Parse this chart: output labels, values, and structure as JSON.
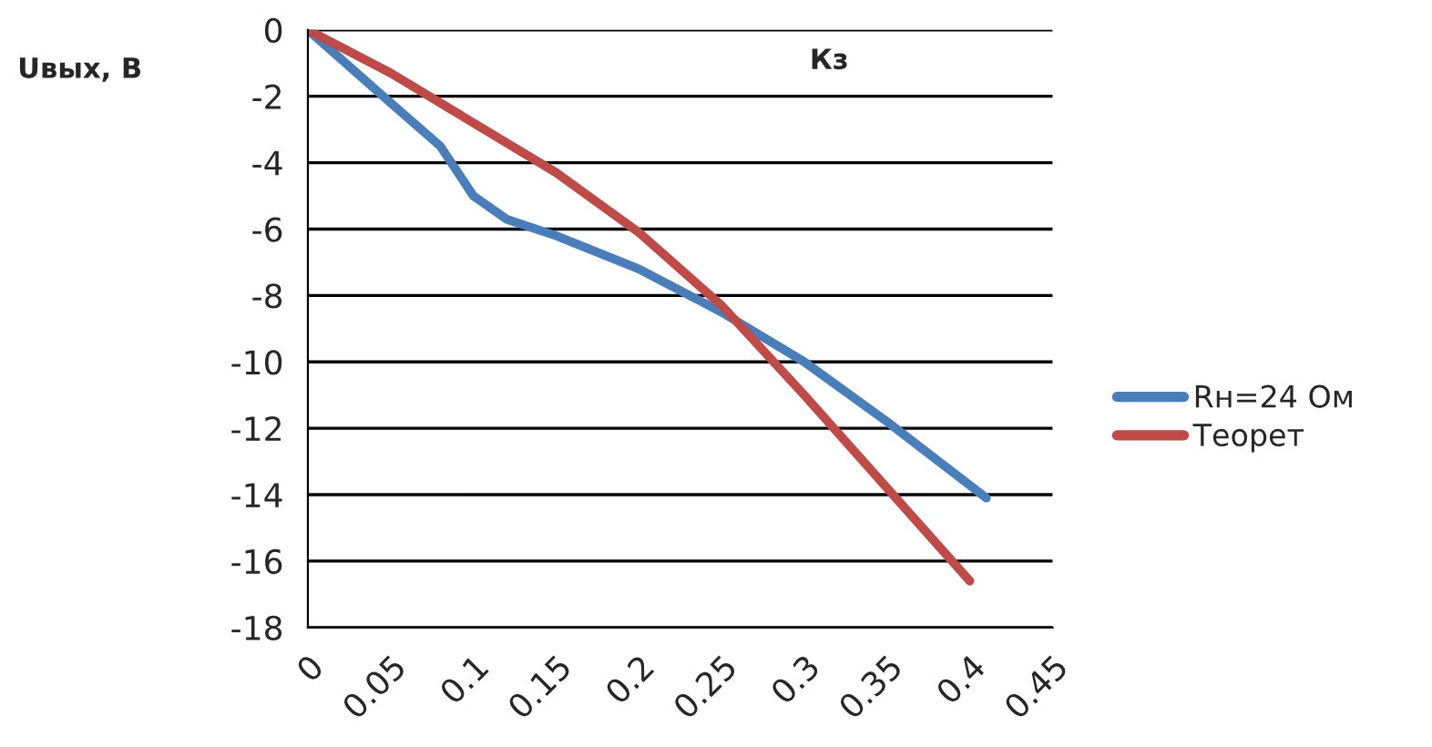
{
  "chart_data": {
    "type": "line",
    "xlabel": "Кз",
    "ylabel": "Uвых, В",
    "xlim": [
      0,
      0.45
    ],
    "xticks": [
      0,
      0.05,
      0.1,
      0.15,
      0.2,
      0.25,
      0.3,
      0.35,
      0.4,
      0.45
    ],
    "ylim": [
      -18,
      0
    ],
    "yticks": [
      -18,
      -16,
      -14,
      -12,
      -10,
      -8,
      -6,
      -4,
      -2,
      0
    ],
    "grid": "y",
    "legend": "right",
    "line_style": "solid",
    "marker": "none",
    "series": [
      {
        "name": "Rн=24 Ом",
        "color": "#4a7ebb",
        "x": [
          0,
          0.05,
          0.08,
          0.1,
          0.12,
          0.15,
          0.2,
          0.25,
          0.3,
          0.35,
          0.41
        ],
        "values": [
          0,
          -2.2,
          -3.5,
          -5,
          -5.7,
          -6.2,
          -7.2,
          -8.5,
          -10,
          -11.8,
          -14.1
        ]
      },
      {
        "name": "Теорет",
        "color": "#be4b48",
        "x": [
          0,
          0.05,
          0.1,
          0.15,
          0.2,
          0.25,
          0.3,
          0.35,
          0.4
        ],
        "values": [
          0,
          -1.3,
          -2.8,
          -4.3,
          -6.1,
          -8.3,
          -11,
          -13.8,
          -16.6
        ]
      }
    ]
  }
}
